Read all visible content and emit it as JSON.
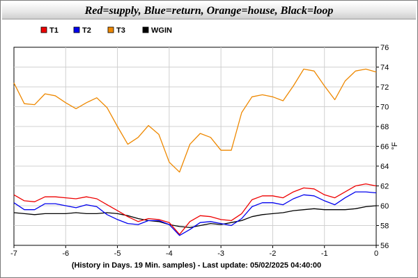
{
  "chart_data": {
    "type": "line",
    "title": "Red=supply, Blue=return, Orange=house, Black=loop",
    "xlabel": "(History in Days. 19 Min. samples) - Last update: 05/02/2025 04:40:00",
    "ylabel": "°F",
    "xlim": [
      -7,
      0
    ],
    "ylim": [
      56,
      76
    ],
    "x_ticks": [
      -7,
      -6,
      -5,
      -4,
      -3,
      -2,
      -1,
      0
    ],
    "y_ticks": [
      56,
      58,
      60,
      62,
      64,
      66,
      68,
      70,
      72,
      74,
      76
    ],
    "grid": true,
    "legend_position": "top-left",
    "x": [
      -7.0,
      -6.8,
      -6.6,
      -6.4,
      -6.2,
      -6.0,
      -5.8,
      -5.6,
      -5.4,
      -5.2,
      -5.0,
      -4.8,
      -4.6,
      -4.4,
      -4.2,
      -4.0,
      -3.8,
      -3.6,
      -3.4,
      -3.2,
      -3.0,
      -2.8,
      -2.6,
      -2.4,
      -2.2,
      -2.0,
      -1.8,
      -1.6,
      -1.4,
      -1.2,
      -1.0,
      -0.8,
      -0.6,
      -0.4,
      -0.2,
      0.0
    ],
    "series": [
      {
        "name": "T1",
        "color": "#ee0000",
        "values": [
          61.1,
          60.5,
          60.4,
          60.9,
          60.9,
          60.8,
          60.7,
          60.9,
          60.7,
          60.1,
          59.5,
          58.9,
          58.4,
          58.7,
          58.6,
          58.3,
          57.1,
          58.4,
          59.0,
          58.9,
          58.6,
          58.5,
          59.2,
          60.6,
          61.0,
          61.0,
          60.8,
          61.4,
          61.8,
          61.7,
          61.1,
          60.8,
          61.4,
          62.0,
          62.2,
          62.0
        ]
      },
      {
        "name": "T2",
        "color": "#0000ee",
        "values": [
          60.3,
          59.6,
          59.6,
          60.2,
          60.2,
          60.0,
          59.8,
          60.1,
          59.9,
          59.1,
          58.6,
          58.2,
          58.1,
          58.5,
          58.5,
          58.1,
          57.0,
          57.6,
          58.3,
          58.4,
          58.2,
          58.0,
          58.7,
          59.9,
          60.3,
          60.3,
          60.1,
          60.7,
          61.1,
          61.0,
          60.5,
          60.1,
          60.8,
          61.4,
          61.4,
          61.3
        ]
      },
      {
        "name": "T3",
        "color": "#ee8800",
        "values": [
          72.4,
          70.3,
          70.2,
          71.3,
          71.1,
          70.4,
          69.8,
          70.4,
          70.9,
          69.9,
          68.0,
          66.2,
          66.9,
          68.1,
          67.2,
          64.4,
          63.4,
          66.2,
          67.3,
          66.9,
          65.6,
          65.6,
          69.4,
          71.0,
          71.2,
          71.0,
          70.6,
          72.1,
          73.8,
          73.6,
          72.1,
          70.7,
          72.6,
          73.6,
          73.8,
          73.5
        ]
      },
      {
        "name": "WGIN",
        "color": "#000000",
        "values": [
          59.3,
          59.2,
          59.1,
          59.2,
          59.2,
          59.2,
          59.3,
          59.2,
          59.2,
          59.3,
          59.2,
          59.0,
          58.7,
          58.5,
          58.4,
          58.1,
          57.9,
          57.8,
          58.0,
          58.2,
          58.1,
          58.3,
          58.5,
          58.9,
          59.1,
          59.2,
          59.3,
          59.5,
          59.6,
          59.7,
          59.6,
          59.6,
          59.6,
          59.7,
          59.9,
          60.0
        ]
      }
    ]
  }
}
